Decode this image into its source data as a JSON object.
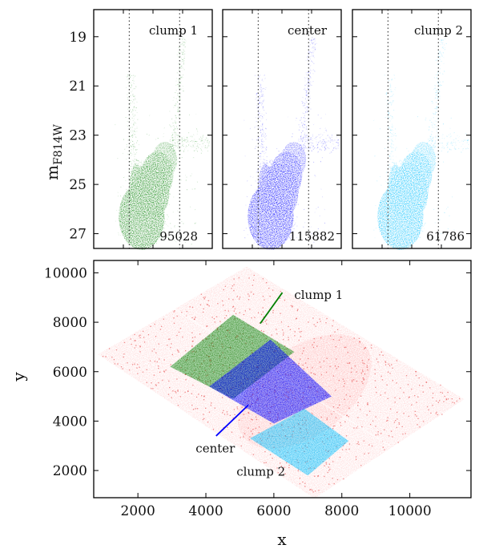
{
  "chart_data": [
    {
      "type": "scatter",
      "panel": "cmd-1",
      "label": "clump 1",
      "count": "95028",
      "color": "#008000",
      "ylabel": "m",
      "ylabel_sub": "F814W",
      "ylim": [
        27.6,
        17.9
      ],
      "yticks": [
        19,
        21,
        23,
        25,
        27
      ],
      "color_range": [
        -1.0,
        3.0
      ],
      "vlines": [
        0.2,
        1.9
      ]
    },
    {
      "type": "scatter",
      "panel": "cmd-2",
      "label": "center",
      "count": "115882",
      "color": "#0000ff",
      "ylim": [
        27.6,
        17.9
      ],
      "yticks": [
        19,
        21,
        23,
        25,
        27
      ],
      "color_range": [
        -1.0,
        3.0
      ],
      "vlines": [
        0.2,
        1.9
      ]
    },
    {
      "type": "scatter",
      "panel": "cmd-3",
      "label": "clump 2",
      "count": "61786",
      "color": "#00bfff",
      "ylim": [
        27.6,
        17.9
      ],
      "yticks": [
        19,
        21,
        23,
        25,
        27
      ],
      "color_range": [
        -1.0,
        3.0
      ],
      "vlines": [
        0.2,
        1.9
      ]
    },
    {
      "type": "scatter",
      "panel": "spatial",
      "xlabel": "x",
      "ylabel": "y",
      "xlim": [
        700,
        11800
      ],
      "ylim": [
        900,
        10500
      ],
      "xticks": [
        2000,
        4000,
        6000,
        8000,
        10000
      ],
      "yticks": [
        2000,
        4000,
        6000,
        8000,
        10000
      ],
      "field": {
        "color": "#ff4040",
        "corners": [
          [
            830,
            6700
          ],
          [
            5200,
            10250
          ],
          [
            11600,
            4880
          ],
          [
            7200,
            870
          ]
        ]
      },
      "regions": [
        {
          "label": "clump 1",
          "color": "#008000",
          "corners": [
            [
              2950,
              6200
            ],
            [
              4800,
              8300
            ],
            [
              6600,
              6800
            ],
            [
              4800,
              4900
            ]
          ],
          "label_pos": [
            6600,
            9100
          ],
          "pointer": [
            [
              6250,
              9200
            ],
            [
              5600,
              7950
            ]
          ]
        },
        {
          "label": "center",
          "color": "#0000ff",
          "corners": [
            [
              4100,
              5400
            ],
            [
              5900,
              7300
            ],
            [
              7700,
              5000
            ],
            [
              6000,
              3900
            ]
          ],
          "label_pos": [
            3700,
            2900
          ],
          "pointer": [
            [
              4300,
              3400
            ],
            [
              5250,
              4650
            ]
          ]
        },
        {
          "label": "clump 2",
          "color": "#00bfff",
          "corners": [
            [
              5300,
              3300
            ],
            [
              6900,
              4500
            ],
            [
              8200,
              3200
            ],
            [
              7000,
              1800
            ]
          ],
          "label_pos": [
            4900,
            1950
          ]
        }
      ]
    }
  ]
}
